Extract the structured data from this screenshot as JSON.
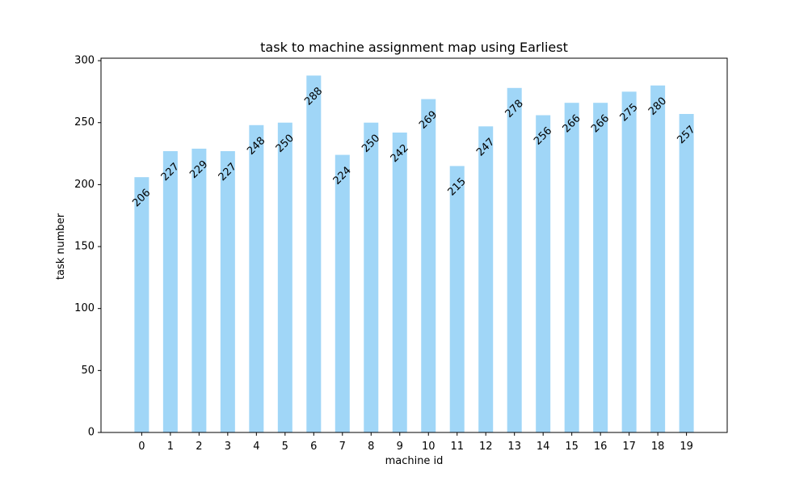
{
  "chart_data": {
    "type": "bar",
    "title": "task to machine assignment map using Earliest",
    "xlabel": "machine id",
    "ylabel": "task number",
    "categories": [
      "0",
      "1",
      "2",
      "3",
      "4",
      "5",
      "6",
      "7",
      "8",
      "9",
      "10",
      "11",
      "12",
      "13",
      "14",
      "15",
      "16",
      "17",
      "18",
      "19"
    ],
    "values": [
      206,
      227,
      229,
      227,
      248,
      250,
      288,
      224,
      250,
      242,
      269,
      215,
      247,
      278,
      256,
      266,
      266,
      275,
      280,
      257
    ],
    "ylim": [
      0,
      302
    ],
    "yticks": [
      0,
      50,
      100,
      150,
      200,
      250,
      300
    ],
    "grid": false,
    "legend": "none",
    "colors": {
      "bar": "#a0d6f7",
      "axis": "#000000",
      "text": "#000000"
    }
  }
}
